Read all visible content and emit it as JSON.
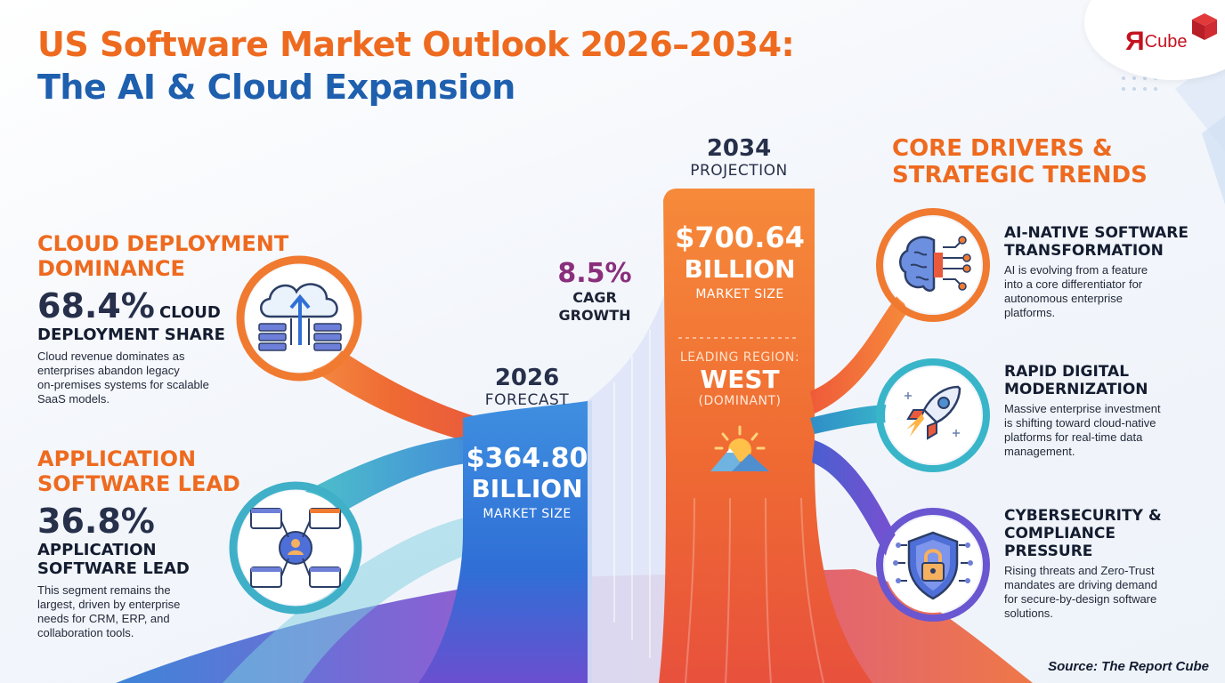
{
  "title": {
    "line1": "US Software Market Outlook  2026–2034:",
    "line2": "The AI & Cloud Expansion"
  },
  "logo": {
    "mark": "R",
    "text": "Cube",
    "icon": "cube-logo-icon"
  },
  "left": {
    "cloud": {
      "heading_1": "CLOUD DEPLOYMENT",
      "heading_2": "DOMINANCE",
      "stat": "68.4%",
      "stat_label_1": "CLOUD",
      "stat_label_2": "DEPLOYMENT SHARE",
      "desc_1": "Cloud revenue dominates as",
      "desc_2": "enterprises abandon legacy",
      "desc_3": "on-premises systems for scalable",
      "desc_4": "SaaS models.",
      "icon": "cloud-upload-servers-icon"
    },
    "app": {
      "heading_1": "APPLICATION",
      "heading_2": "SOFTWARE LEAD",
      "stat": "36.8%",
      "stat_label_1": "APPLICATION",
      "stat_label_2": "SOFTWARE LEAD",
      "desc_1": "This segment remains the",
      "desc_2": "largest, driven by enterprise",
      "desc_3": "needs for CRM, ERP, and",
      "desc_4": "collaboration tools.",
      "icon": "application-network-icon"
    }
  },
  "center": {
    "forecast_year": "2026",
    "forecast_label": "FORECAST",
    "forecast_value": "$364.80",
    "forecast_unit": "BILLION",
    "forecast_sub": "MARKET SIZE",
    "cagr_value": "8.5%",
    "cagr_label_1": "CAGR",
    "cagr_label_2": "GROWTH",
    "projection_year": "2034",
    "projection_label": "PROJECTION",
    "projection_value": "$700.64",
    "projection_unit": "BILLION",
    "projection_sub": "MARKET SIZE",
    "region_label": "LEADING REGION:",
    "region_value": "WEST",
    "region_sub": "(DOMINANT)",
    "region_icon": "sun-mountain-icon"
  },
  "right": {
    "heading_1": "CORE DRIVERS &",
    "heading_2": "STRATEGIC TRENDS",
    "drivers": [
      {
        "title_1": "AI-NATIVE SOFTWARE",
        "title_2": "TRANSFORMATION",
        "title_3": "",
        "desc_1": "AI is evolving from a feature",
        "desc_2": "into a core differentiator for",
        "desc_3": "autonomous enterprise",
        "desc_4": "platforms.",
        "icon": "ai-brain-circuit-icon"
      },
      {
        "title_1": "RAPID DIGITAL",
        "title_2": "MODERNIZATION",
        "title_3": "",
        "desc_1": "Massive enterprise investment",
        "desc_2": "is shifting toward cloud-native",
        "desc_3": "platforms for real-time data",
        "desc_4": "management.",
        "icon": "rocket-icon"
      },
      {
        "title_1": "CYBERSECURITY &",
        "title_2": "COMPLIANCE",
        "title_3": "PRESSURE",
        "desc_1": "Rising threats and Zero-Trust",
        "desc_2": "mandates are driving demand",
        "desc_3": "for secure-by-design software",
        "desc_4": "solutions.",
        "icon": "shield-lock-icon"
      }
    ]
  },
  "source": "Source: The Report Cube",
  "colors": {
    "orange": "#ee6a1f",
    "blue": "#1e5fae",
    "purple": "#8a2f7c",
    "dark": "#141c30"
  }
}
